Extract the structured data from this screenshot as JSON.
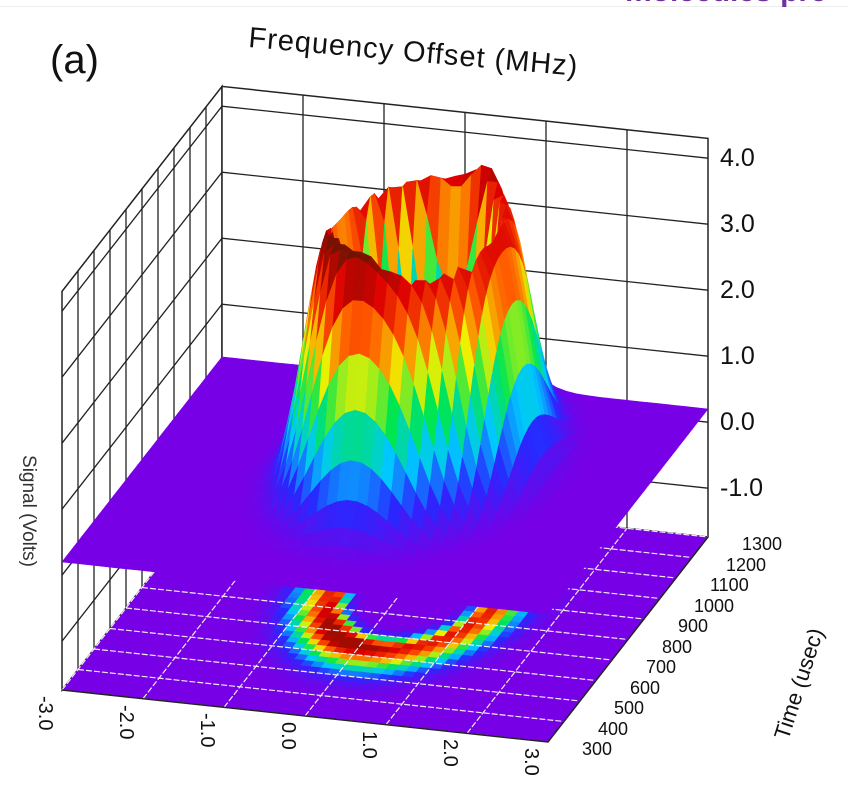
{
  "header_fragment": "molecules pre",
  "panel_label": "(a)",
  "chart_data": {
    "type": "surface",
    "title": "Frequency Offset (MHz)",
    "xlabel": "Frequency Offset (MHz)",
    "ylabel": "Time (usec)",
    "zlabel": "Signal (Volts)",
    "xlim": [
      -3.0,
      3.0
    ],
    "ylim": [
      300,
      1300
    ],
    "zlim": [
      -1.0,
      4.0
    ],
    "x_ticks": [
      "-3.0",
      "-2.0",
      "-1.0",
      "0.0",
      "1.0",
      "2.0",
      "3.0"
    ],
    "y_ticks": [
      "300",
      "400",
      "500",
      "600",
      "700",
      "800",
      "900",
      "1000",
      "1100",
      "1200",
      "1300"
    ],
    "z_ticks": [
      "4.0",
      "3.0",
      "2.0",
      "1.0",
      "0.0",
      "-1.0"
    ],
    "surface": {
      "baseline_volts": 0.2,
      "ring_center_freq_mhz": 0.2,
      "ring_center_time_usec": 900,
      "ring_peak_volts": 3.8,
      "max_peak_volts": 4.2
    },
    "colormap": "rainbow",
    "floor_projection": "contour heatmap",
    "grid": true
  }
}
